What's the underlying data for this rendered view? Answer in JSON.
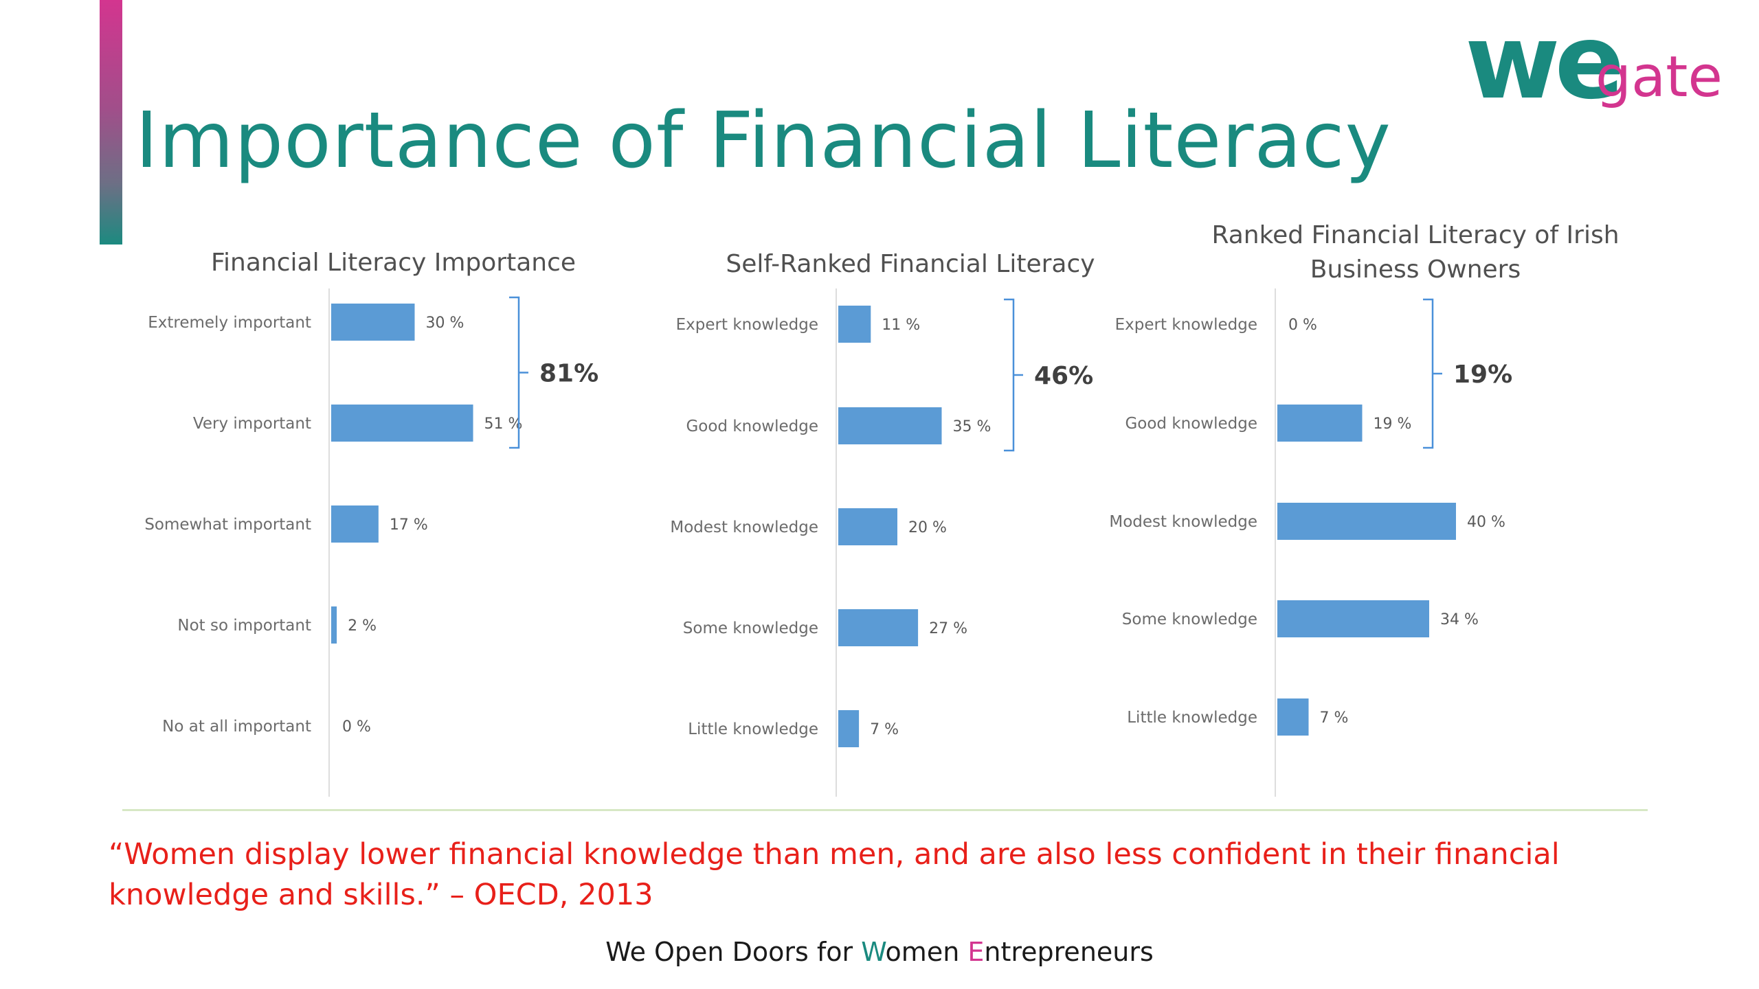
{
  "slide": {
    "title": "Importance of Financial Literacy",
    "logo": {
      "we": "we",
      "gate": "gate",
      "colors": {
        "we": "#1a8a7f",
        "gate": "#d3358f"
      }
    },
    "quote": "“Women display lower financial knowledge than men, and are also less confident in their financial knowledge and skills.” – OECD, 2013",
    "tagline": {
      "p1": "We Open Doors for ",
      "w": "W",
      "p2": "omen ",
      "e": "E",
      "p3": "ntrepreneurs"
    },
    "colors": {
      "accent_teal": "#1a8a7f",
      "accent_pink": "#d3358f",
      "bar": "#5b9bd5",
      "quote": "#e8201a"
    }
  },
  "chart_data": [
    {
      "type": "bar",
      "orientation": "horizontal",
      "title": "Financial Literacy Importance",
      "categories": [
        "Extremely important",
        "Very important",
        "Somewhat important",
        "Not so important",
        "No at all important"
      ],
      "values": [
        30,
        51,
        17,
        2,
        0
      ],
      "value_labels": [
        "30 %",
        "51 %",
        "17 %",
        "2 %",
        "0 %"
      ],
      "bracket": {
        "from_index": 0,
        "to_index": 1,
        "label": "81%"
      }
    },
    {
      "type": "bar",
      "orientation": "horizontal",
      "title": "Self-Ranked Financial Literacy",
      "categories": [
        "Expert knowledge",
        "Good knowledge",
        "Modest knowledge",
        "Some knowledge",
        "Little knowledge"
      ],
      "values": [
        11,
        35,
        20,
        27,
        7
      ],
      "value_labels": [
        "11 %",
        "35 %",
        "20 %",
        "27 %",
        "7 %"
      ],
      "bracket": {
        "from_index": 0,
        "to_index": 1,
        "label": "46%"
      }
    },
    {
      "type": "bar",
      "orientation": "horizontal",
      "title": "Ranked Financial Literacy of Irish Business Owners",
      "title_lines": [
        "Ranked Financial Literacy of Irish",
        "Business Owners"
      ],
      "categories": [
        "Expert knowledge",
        "Good knowledge",
        "Modest knowledge",
        "Some knowledge",
        "Little knowledge"
      ],
      "values": [
        0,
        19,
        40,
        34,
        7
      ],
      "value_labels": [
        "0 %",
        "19 %",
        "40 %",
        "34 %",
        "7 %"
      ],
      "bracket": {
        "from_index": 0,
        "to_index": 1,
        "label": "19%"
      }
    }
  ]
}
